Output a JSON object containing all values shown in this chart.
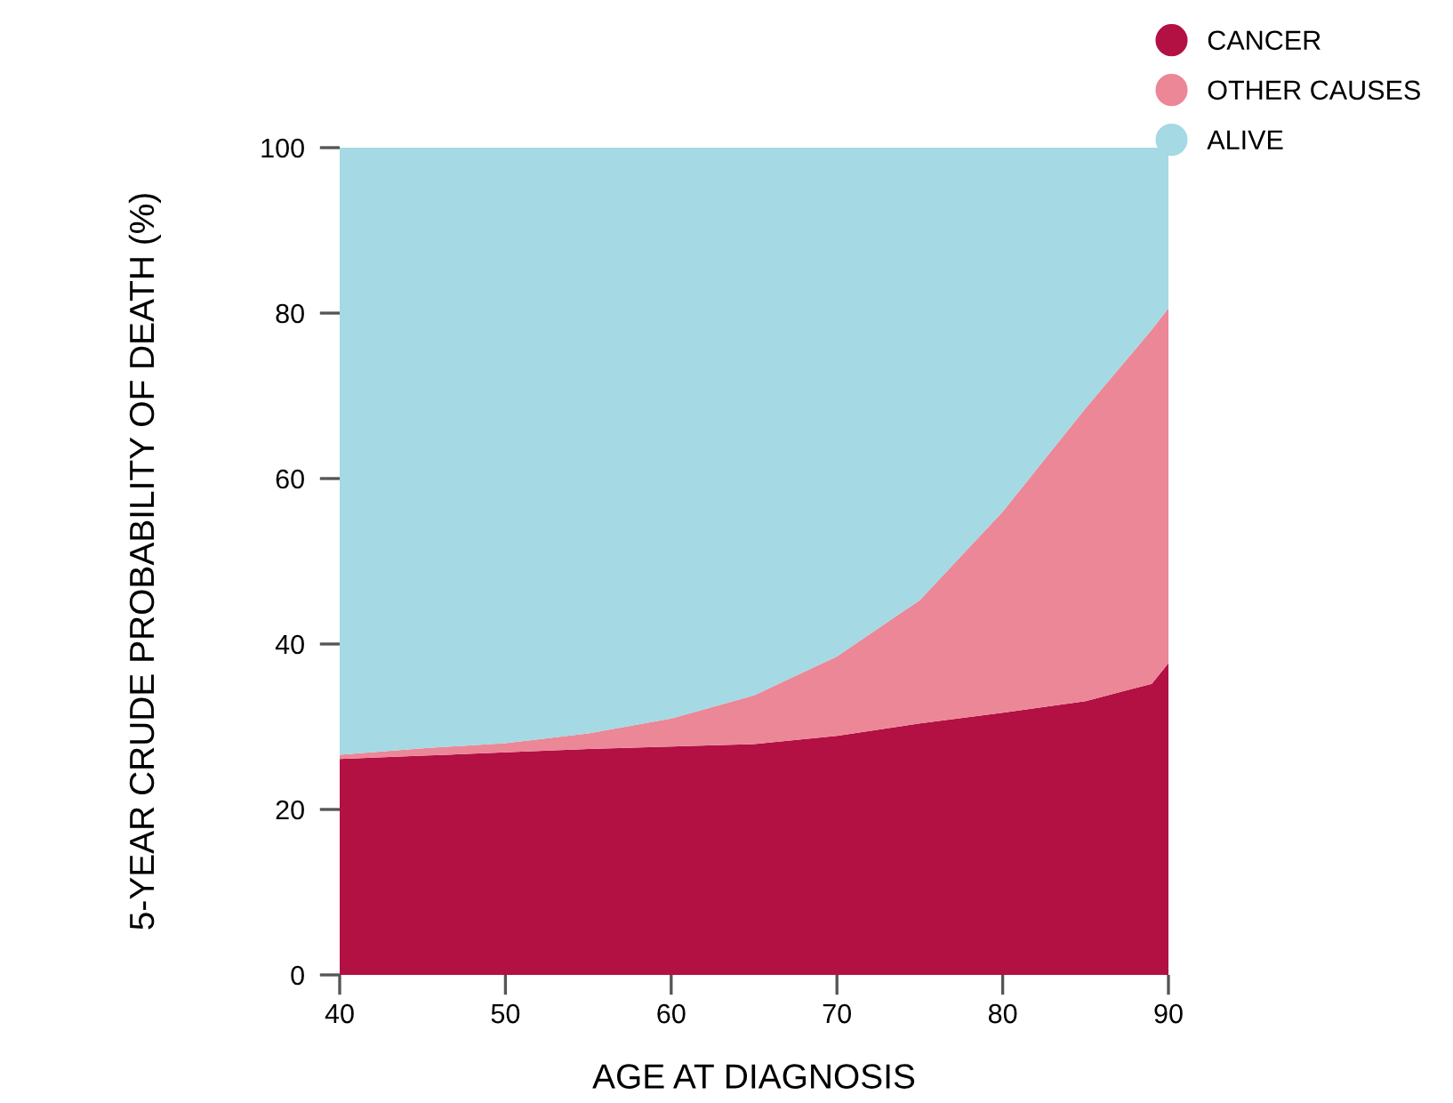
{
  "chart_data": {
    "type": "area",
    "stacked": true,
    "xlabel": "AGE AT DIAGNOSIS",
    "ylabel": "5-YEAR CRUDE PROBABILITY OF DEATH (%)",
    "x": [
      40,
      45,
      50,
      55,
      60,
      65,
      70,
      75,
      80,
      85,
      89,
      90
    ],
    "series": [
      {
        "name": "CANCER",
        "color": "#b31044",
        "values": [
          26.1,
          26.5,
          26.9,
          27.3,
          27.6,
          27.9,
          28.9,
          30.4,
          31.7,
          33.1,
          35.2,
          37.7
        ]
      },
      {
        "name": "OTHER CAUSES",
        "color": "#eb8797",
        "values": [
          0.5,
          0.9,
          1.1,
          1.9,
          3.4,
          5.9,
          9.6,
          14.9,
          24.3,
          35.4,
          42.8,
          42.9
        ]
      },
      {
        "name": "ALIVE",
        "color": "#a5d9e3",
        "values": [
          73.4,
          72.6,
          72.0,
          70.8,
          69.0,
          66.2,
          61.5,
          54.7,
          44.0,
          31.5,
          22.0,
          19.4
        ]
      }
    ],
    "xlim": [
      40,
      90
    ],
    "ylim": [
      0,
      100
    ],
    "xticks": [
      40,
      50,
      60,
      70,
      80,
      90
    ],
    "yticks": [
      0,
      20,
      40,
      60,
      80,
      100
    ],
    "grid": false,
    "legend": "top right"
  }
}
